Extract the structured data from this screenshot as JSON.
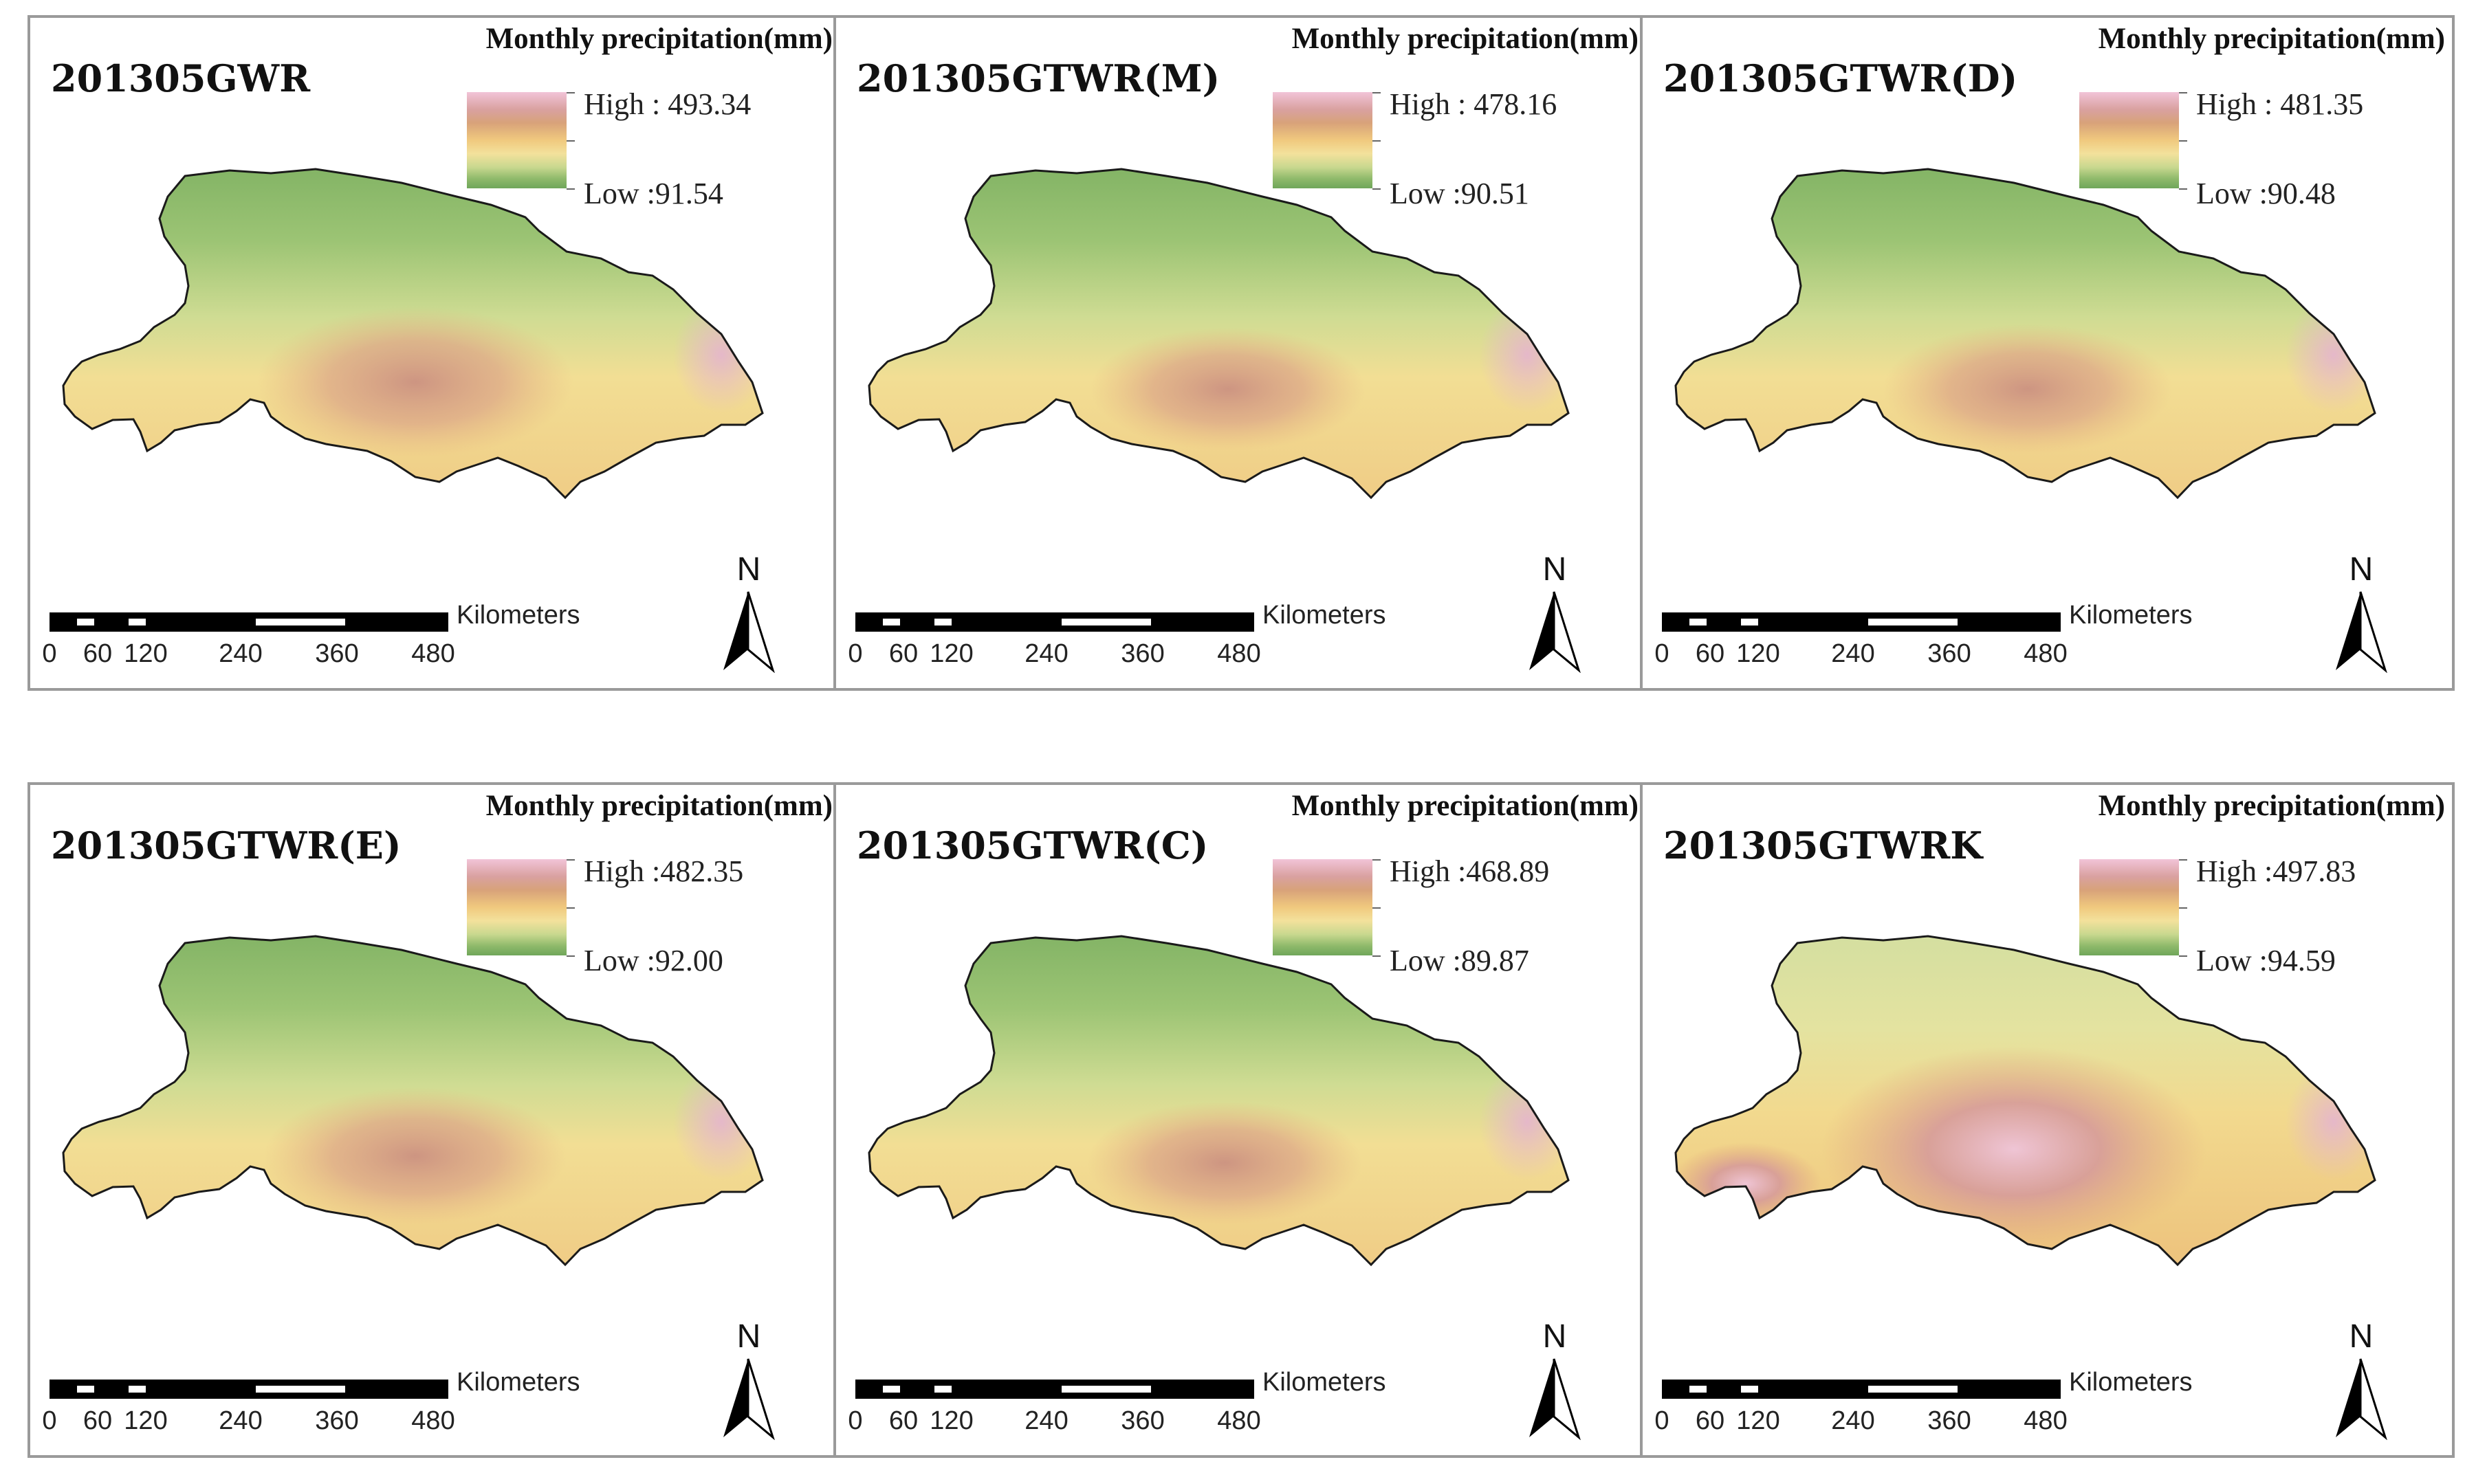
{
  "legend_title": "Monthly precipitation(mm)",
  "scale": {
    "unit": "Kilometers",
    "ticks": [
      "0",
      "60",
      "120",
      "240",
      "360",
      "480"
    ]
  },
  "north_label": "N",
  "colors": {
    "high": "#e9b9cf",
    "mid_high": "#d5a087",
    "mid": "#f2d98e",
    "mid_low": "#c5d98d",
    "low": "#6fa65a",
    "boundary": "#1a1a1a"
  },
  "panels": [
    {
      "title": "201305GWR",
      "high": "High : 493.34",
      "low": "Low :91.54"
    },
    {
      "title": "201305GTWR(M)",
      "high": "High : 478.16",
      "low": "Low :90.51"
    },
    {
      "title": "201305GTWR(D)",
      "high": "High : 481.35",
      "low": "Low :90.48"
    },
    {
      "title": "201305GTWR(E)",
      "high": "High :482.35",
      "low": "Low :92.00"
    },
    {
      "title": "201305GTWR(C)",
      "high": "High :468.89",
      "low": "Low :89.87"
    },
    {
      "title": "201305GTWRK",
      "high": "High :497.83",
      "low": "Low :94.59"
    }
  ]
}
